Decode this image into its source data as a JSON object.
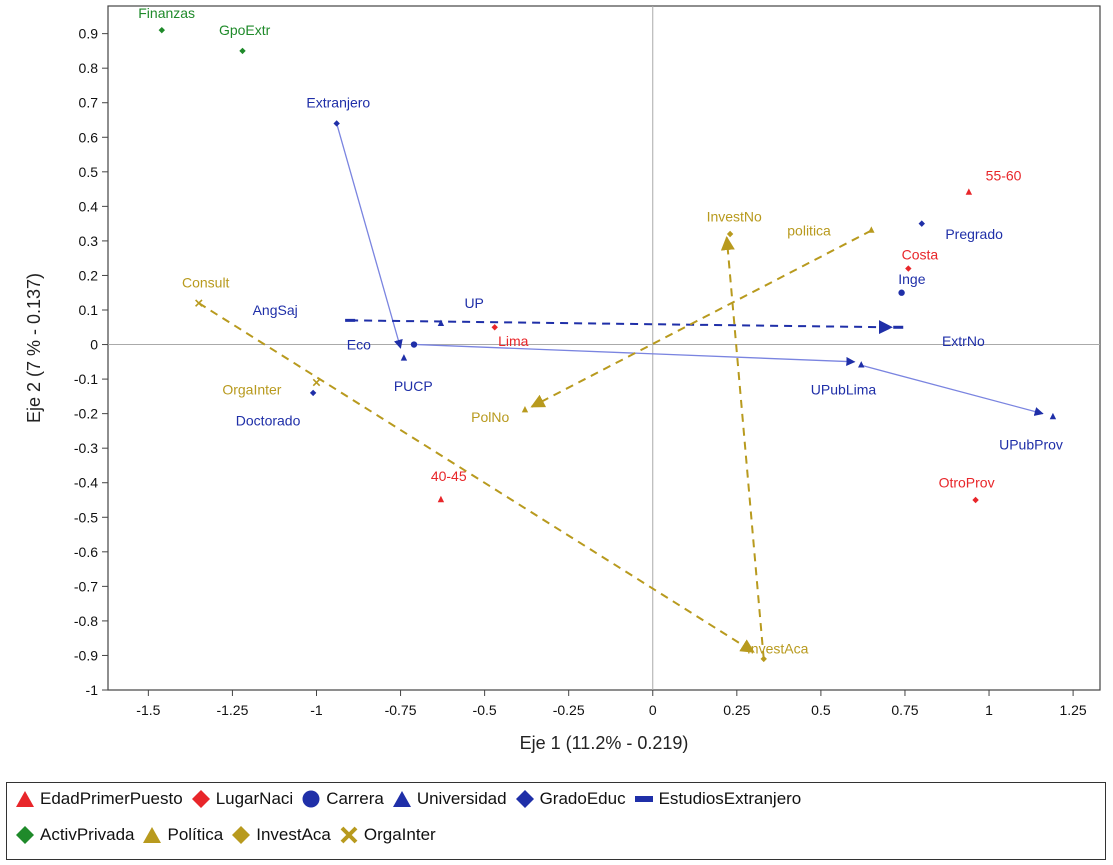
{
  "chart_data": {
    "type": "scatter",
    "title": "",
    "xlabel": "Eje 1 (11.2% - 0.219)",
    "ylabel": "Eje 2 (7 % - 0.137)",
    "xlim": [
      -1.62,
      1.33
    ],
    "ylim": [
      -1.0,
      0.98
    ],
    "x_ticks": [
      -1.5,
      -1.25,
      -1,
      -0.75,
      -0.5,
      -0.25,
      0,
      0.25,
      0.5,
      0.75,
      1,
      1.25
    ],
    "x_tick_labels": [
      "-1.5",
      "-1.25",
      "-1",
      "-0.75",
      "-0.5",
      "-0.25",
      "0",
      "0.25",
      "0.5",
      "0.75",
      "1",
      "1.25"
    ],
    "y_ticks": [
      0.9,
      0.8,
      0.7,
      0.6,
      0.5,
      0.4,
      0.3,
      0.2,
      0.1,
      0,
      -0.1,
      -0.2,
      -0.3,
      -0.4,
      -0.5,
      -0.6,
      -0.7,
      -0.8,
      -0.9,
      -1
    ],
    "y_tick_labels": [
      "0.9",
      "0.8",
      "0.7",
      "0.6",
      "0.5",
      "0.4",
      "0.3",
      "0.2",
      "0.1",
      "0",
      "-0.1",
      "-0.2",
      "-0.3",
      "-0.4",
      "-0.5",
      "-0.6",
      "-0.7",
      "-0.8",
      "-0.9",
      "-1"
    ],
    "zero_lines": true,
    "grid": false,
    "series": [
      {
        "name": "EdadPrimerPuesto",
        "color": "#e8262a",
        "marker": "triangle",
        "points": [
          {
            "label": "55-60",
            "x": 0.94,
            "y": 0.44,
            "label_dx": 0.05,
            "label_dy": 0.05
          },
          {
            "label": "40-45",
            "x": -0.63,
            "y": -0.45,
            "label_dx": -0.03,
            "label_dy": 0.07
          }
        ]
      },
      {
        "name": "LugarNaci",
        "color": "#e8262a",
        "marker": "diamond",
        "points": [
          {
            "label": "Costa",
            "x": 0.76,
            "y": 0.22,
            "label_dx": -0.02,
            "label_dy": 0.04
          },
          {
            "label": "Lima",
            "x": -0.47,
            "y": 0.05,
            "label_dx": 0.01,
            "label_dy": -0.04
          },
          {
            "label": "OtroProv",
            "x": 0.96,
            "y": -0.45,
            "label_dx": -0.11,
            "label_dy": 0.05
          }
        ]
      },
      {
        "name": "Carrera",
        "color": "#1f2fa8",
        "marker": "circle",
        "points": [
          {
            "label": "Inge",
            "x": 0.74,
            "y": 0.15,
            "label_dx": -0.01,
            "label_dy": 0.04
          },
          {
            "label": "Eco",
            "x": -0.71,
            "y": 0.0,
            "label_dx": -0.2,
            "label_dy": 0.0
          }
        ]
      },
      {
        "name": "Universidad",
        "color": "#1f2fa8",
        "marker": "triangle",
        "points": [
          {
            "label": "UP",
            "x": -0.63,
            "y": 0.06,
            "label_dx": 0.07,
            "label_dy": 0.06
          },
          {
            "label": "PUCP",
            "x": -0.74,
            "y": -0.04,
            "label_dx": -0.03,
            "label_dy": -0.08
          },
          {
            "label": "UPubLima",
            "x": 0.62,
            "y": -0.06,
            "label_dx": -0.15,
            "label_dy": -0.07
          },
          {
            "label": "UPubProv",
            "x": 1.19,
            "y": -0.21,
            "label_dx": -0.16,
            "label_dy": -0.08
          }
        ]
      },
      {
        "name": "GradoEduc",
        "color": "#1f2fa8",
        "marker": "diamond",
        "points": [
          {
            "label": "Extranjero",
            "x": -0.94,
            "y": 0.64,
            "label_dx": -0.09,
            "label_dy": 0.06
          },
          {
            "label": "Pregrado",
            "x": 0.8,
            "y": 0.35,
            "label_dx": 0.07,
            "label_dy": -0.03
          },
          {
            "label": "Doctorado",
            "x": -1.01,
            "y": -0.14,
            "label_dx": -0.23,
            "label_dy": -0.08
          }
        ]
      },
      {
        "name": "EstudiosExtranjero",
        "color": "#1f2fa8",
        "marker": "dash",
        "points": [
          {
            "label": "AngSaj",
            "x": -0.9,
            "y": 0.07,
            "label_dx": -0.29,
            "label_dy": 0.03
          },
          {
            "label": "ExtrNo",
            "x": 0.73,
            "y": 0.05,
            "label_dx": 0.13,
            "label_dy": -0.04
          }
        ]
      },
      {
        "name": "ActivPrivada",
        "color": "#1f8a2a",
        "marker": "diamond",
        "points": [
          {
            "label": "Finanzas",
            "x": -1.46,
            "y": 0.91,
            "label_dx": -0.07,
            "label_dy": 0.05
          },
          {
            "label": "GpoExtr",
            "x": -1.22,
            "y": 0.85,
            "label_dx": -0.07,
            "label_dy": 0.06
          }
        ]
      },
      {
        "name": "Política",
        "color": "#b89a1e",
        "marker": "triangle",
        "points": [
          {
            "label": "politica",
            "x": 0.65,
            "y": 0.33,
            "label_dx": -0.25,
            "label_dy": 0.0
          },
          {
            "label": "PolNo",
            "x": -0.38,
            "y": -0.19,
            "label_dx": -0.16,
            "label_dy": -0.02
          }
        ]
      },
      {
        "name": "InvestAca",
        "color": "#b89a1e",
        "marker": "diamond",
        "points": [
          {
            "label": "InvestNo",
            "x": 0.23,
            "y": 0.32,
            "label_dx": -0.07,
            "label_dy": 0.05
          },
          {
            "label": "InvestAca",
            "x": 0.33,
            "y": -0.91,
            "label_dx": -0.05,
            "label_dy": 0.03
          }
        ]
      },
      {
        "name": "OrgaInter",
        "color": "#b89a1e",
        "marker": "cross",
        "points": [
          {
            "label": "Consult",
            "x": -1.35,
            "y": 0.12,
            "label_dx": -0.05,
            "label_dy": 0.06
          },
          {
            "label": "OrgaInter",
            "x": -1.0,
            "y": -0.11,
            "label_dx": -0.28,
            "label_dy": -0.02
          }
        ]
      }
    ],
    "arrows": [
      {
        "from": [
          -0.94,
          0.64
        ],
        "to": [
          -0.75,
          -0.01
        ],
        "color": "#7a84e0",
        "dashed": false,
        "width": 1.3
      },
      {
        "from": [
          -0.7,
          0.0
        ],
        "to": [
          0.6,
          -0.05
        ],
        "color": "#7a84e0",
        "dashed": false,
        "width": 1.3
      },
      {
        "from": [
          0.62,
          -0.06
        ],
        "to": [
          1.16,
          -0.2
        ],
        "color": "#7a84e0",
        "dashed": false,
        "width": 1.3
      },
      {
        "from": [
          -0.9,
          0.07
        ],
        "to": [
          0.71,
          0.05
        ],
        "color": "#1f2fa8",
        "dashed": true,
        "width": 2
      },
      {
        "from": [
          0.65,
          0.33
        ],
        "to": [
          -0.36,
          -0.18
        ],
        "color": "#b89a1e",
        "dashed": true,
        "width": 2
      },
      {
        "from": [
          0.33,
          -0.91
        ],
        "to": [
          0.22,
          0.31
        ],
        "color": "#b89a1e",
        "dashed": true,
        "width": 2
      },
      {
        "from": [
          -1.35,
          0.12
        ],
        "to": [
          0.3,
          -0.89
        ],
        "color": "#b89a1e",
        "dashed": true,
        "width": 2
      }
    ]
  },
  "legend": {
    "rows": [
      [
        {
          "name": "EdadPrimerPuesto",
          "marker": "triangle",
          "color": "#e8262a"
        },
        {
          "name": "LugarNaci",
          "marker": "diamond",
          "color": "#e8262a"
        },
        {
          "name": "Carrera",
          "marker": "circle",
          "color": "#1f2fa8"
        },
        {
          "name": "Universidad",
          "marker": "triangle",
          "color": "#1f2fa8"
        },
        {
          "name": "GradoEduc",
          "marker": "diamond",
          "color": "#1f2fa8"
        },
        {
          "name": "EstudiosExtranjero",
          "marker": "dash",
          "color": "#1f2fa8"
        }
      ],
      [
        {
          "name": "ActivPrivada",
          "marker": "diamond",
          "color": "#1f8a2a"
        },
        {
          "name": "Política",
          "marker": "triangle",
          "color": "#b89a1e"
        },
        {
          "name": "InvestAca",
          "marker": "diamond",
          "color": "#b89a1e"
        },
        {
          "name": "OrgaInter",
          "marker": "cross",
          "color": "#b89a1e"
        }
      ]
    ]
  }
}
